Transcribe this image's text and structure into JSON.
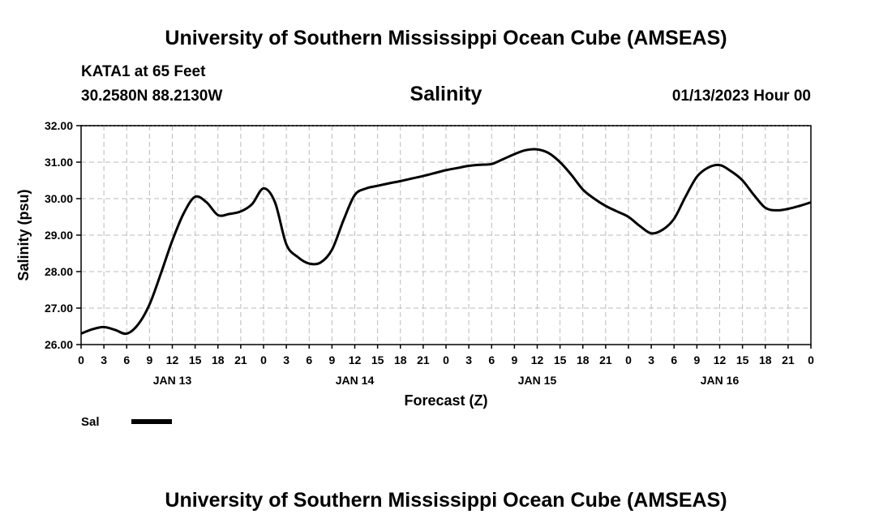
{
  "header": {
    "main_title": "University of Southern Mississippi Ocean Cube (AMSEAS)",
    "station": "KATA1 at 65 Feet",
    "coords": "30.2580N  88.2130W",
    "datetime": "01/13/2023 Hour 00"
  },
  "footer": {
    "title": "University of Southern Mississippi Ocean Cube (AMSEAS)"
  },
  "chart_data": {
    "type": "line",
    "title": "Salinity",
    "xlabel": "Forecast (Z)",
    "ylabel": "Salinity (psu)",
    "ylim": [
      26.0,
      32.0
    ],
    "xlim_hours": [
      0,
      96
    ],
    "yticks": [
      "26.00",
      "27.00",
      "28.00",
      "29.00",
      "30.00",
      "31.00",
      "32.00"
    ],
    "ytick_values": [
      26,
      27,
      28,
      29,
      30,
      31,
      32
    ],
    "xtick_labels": [
      "0",
      "3",
      "6",
      "9",
      "12",
      "15",
      "18",
      "21",
      "0",
      "3",
      "6",
      "9",
      "12",
      "15",
      "18",
      "21",
      "0",
      "3",
      "6",
      "9",
      "12",
      "15",
      "18",
      "21",
      "0",
      "3",
      "6",
      "9",
      "12",
      "15",
      "18",
      "21",
      "0"
    ],
    "day_labels": [
      {
        "label": "JAN 13",
        "hour": 12
      },
      {
        "label": "JAN 14",
        "hour": 36
      },
      {
        "label": "JAN 15",
        "hour": 60
      },
      {
        "label": "JAN 16",
        "hour": 84
      }
    ],
    "grid": true,
    "legend": "bottom-left",
    "series": [
      {
        "name": "Sal",
        "color": "#000000",
        "x": [
          0,
          1.5,
          3,
          4.5,
          6,
          7.5,
          9,
          10.5,
          12,
          13.5,
          15,
          16.5,
          18,
          19.5,
          21,
          22.5,
          24,
          25.5,
          27,
          28.5,
          30,
          31.5,
          33,
          34.5,
          36,
          37.5,
          39,
          40.5,
          42,
          43.5,
          45,
          46.5,
          48,
          49.5,
          51,
          52.5,
          54,
          55.5,
          57,
          58.5,
          60,
          61.5,
          63,
          64.5,
          66,
          67.5,
          69,
          70.5,
          72,
          73.5,
          75,
          76.5,
          78,
          79.5,
          81,
          82.5,
          84,
          85.5,
          87,
          88.5,
          90,
          91.5,
          93,
          94.5,
          96
        ],
        "values": [
          26.3,
          26.42,
          26.48,
          26.4,
          26.3,
          26.55,
          27.1,
          27.95,
          28.85,
          29.6,
          30.05,
          29.9,
          29.55,
          29.58,
          29.65,
          29.85,
          30.28,
          29.9,
          28.75,
          28.4,
          28.22,
          28.25,
          28.6,
          29.4,
          30.1,
          30.28,
          30.35,
          30.42,
          30.48,
          30.55,
          30.62,
          30.7,
          30.78,
          30.84,
          30.9,
          30.93,
          30.95,
          31.08,
          31.22,
          31.33,
          31.35,
          31.25,
          31.0,
          30.65,
          30.25,
          30.0,
          29.8,
          29.65,
          29.5,
          29.25,
          29.05,
          29.15,
          29.45,
          30.05,
          30.6,
          30.85,
          30.92,
          30.75,
          30.5,
          30.1,
          29.75,
          29.68,
          29.72,
          29.8,
          29.9
        ]
      }
    ]
  }
}
